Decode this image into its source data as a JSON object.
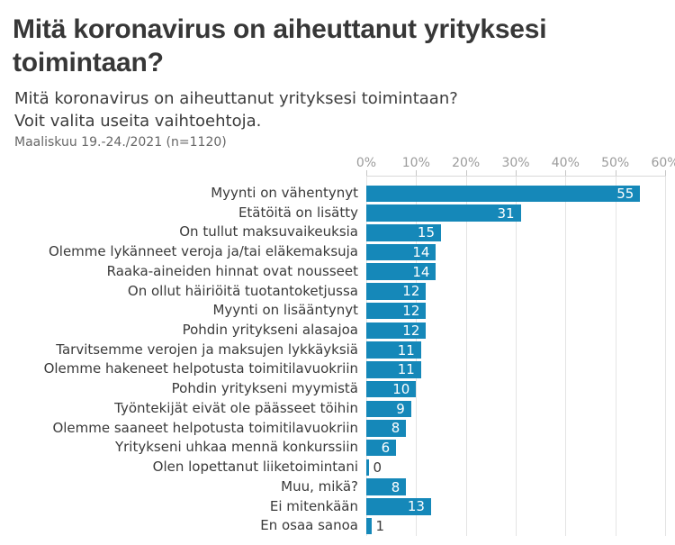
{
  "page": {
    "title": "Mitä koronavirus on aiheuttanut yrityksesi toimintaan?",
    "subtitle": "Mitä koronavirus on aiheuttanut yrityksesi toimintaan?\nVoit valita useita vaihtoehtoja.",
    "note": "Maaliskuu 19.-24./2021 (n=1120)"
  },
  "chart_data": {
    "type": "bar",
    "orientation": "horizontal",
    "title": "Mitä koronavirus on aiheuttanut yrityksesi toimintaan?",
    "subtitle": "Mitä koronavirus on aiheuttanut yrityksesi toimintaan? Voit valita useita vaihtoehtoja.",
    "sample_note": "Maaliskuu 19.-24./2021 (n=1120)",
    "categories": [
      "Myynti on vähentynyt",
      "Etätöitä on lisätty",
      "On tullut maksuvaikeuksia",
      "Olemme lykänneet veroja ja/tai eläkemaksuja",
      "Raaka-aineiden hinnat ovat nousseet",
      "On ollut häiriöitä tuotantoketjussa",
      "Myynti on lisääntynyt",
      "Pohdin yritykseni alasajoa",
      "Tarvitsemme verojen ja maksujen lykkäyksiä",
      "Olemme hakeneet helpotusta toimitilavuokriin",
      "Pohdin yritykseni myymistä",
      "Työntekijät eivät ole päässeet töihin",
      "Olemme saaneet helpotusta toimitilavuokriin",
      "Yritykseni uhkaa mennä konkurssiin",
      "Olen lopettanut liiketoimintani",
      "Muu, mikä?",
      "Ei mitenkään",
      "En osaa sanoa"
    ],
    "values": [
      55,
      31,
      15,
      14,
      14,
      12,
      12,
      12,
      11,
      11,
      10,
      9,
      8,
      6,
      0,
      8,
      13,
      1
    ],
    "value_unit": "%",
    "xlabel": "",
    "ylabel": "",
    "x_axis": {
      "position": "top",
      "min": 0,
      "max": 60,
      "tick_step": 10,
      "ticks": [
        "0%",
        "10%",
        "20%",
        "30%",
        "40%",
        "50%",
        "60%"
      ]
    },
    "grid": true,
    "legend": false,
    "colors": {
      "bar": "#1588b9",
      "value_label_inside": "#ffffff",
      "value_label_outside": "#3a3a3a",
      "axis_text": "#9b9b9b",
      "gridline": "#e4e4e4",
      "title_text": "#373737",
      "category_text": "#3a3a3a",
      "note_text": "#666666",
      "background": "#ffffff"
    }
  }
}
